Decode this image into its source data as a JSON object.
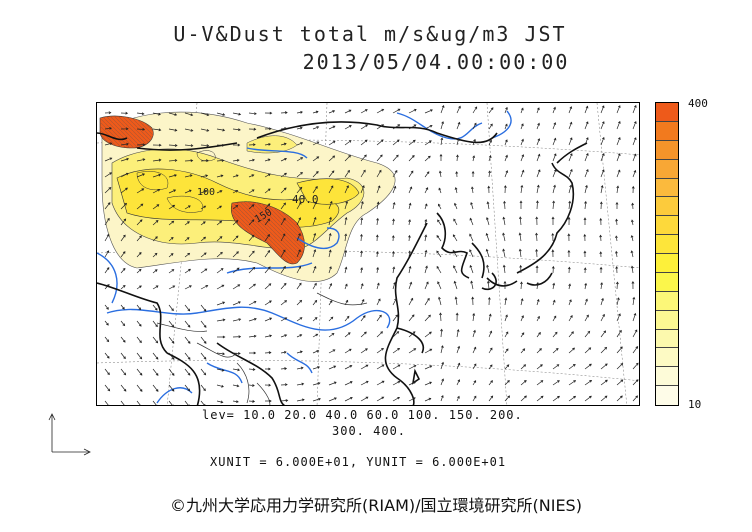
{
  "title": {
    "line1": "U-V&Dust total m/s&ug/m3 JST",
    "line2": "2013/05/04.00:00:00"
  },
  "colorbar": {
    "max_label": "400",
    "min_label": "10",
    "colors": [
      "#ee5a1a",
      "#f27a1e",
      "#f5942a",
      "#f8a735",
      "#fbba3d",
      "#fccb3c",
      "#fdd93b",
      "#fde53a",
      "#fdf03a",
      "#fbf64b",
      "#fcf778",
      "#fcf893",
      "#fcf9ad",
      "#fdfac4",
      "#fdfbd8",
      "#fefce8"
    ]
  },
  "levels": {
    "line1": "lev= 10.0 20.0 40.0 60.0 100. 150. 200.",
    "line2": "300. 400."
  },
  "units": "XUNIT = 6.000E+01, YUNIT = 6.000E+01",
  "contour_labels": [
    "40.0",
    "150",
    "100"
  ],
  "credit": "©九州大学応用力学研究所(RIAM)/国立環境研究所(NIES)"
}
